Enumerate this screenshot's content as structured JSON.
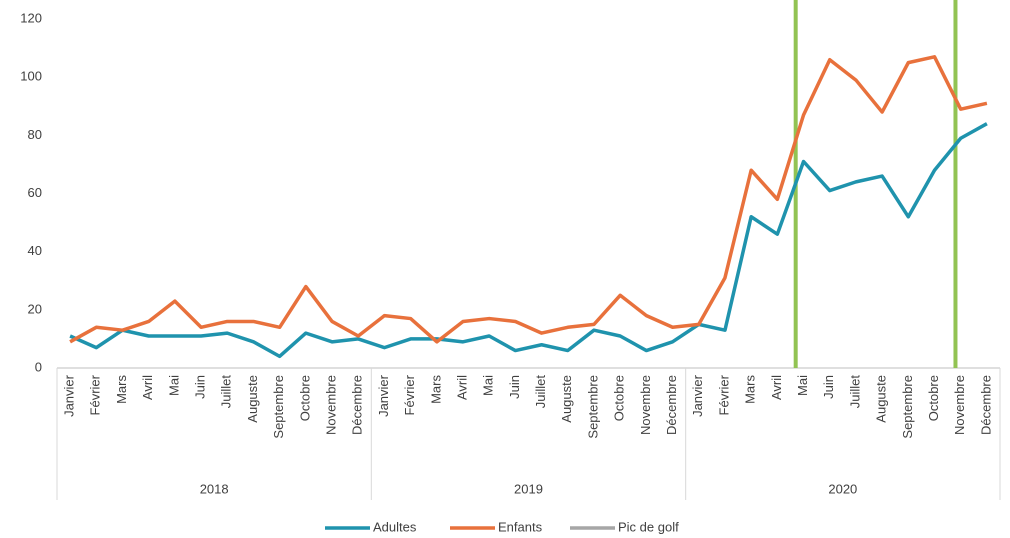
{
  "chart_data": {
    "type": "line",
    "categories": [
      "Janvier",
      "Février",
      "Mars",
      "Avril",
      "Mai",
      "Juin",
      "Juillet",
      "Auguste",
      "Septembre",
      "Octobre",
      "Novembre",
      "Décembre",
      "Janvier",
      "Février",
      "Mars",
      "Avril",
      "Mai",
      "Juin",
      "Juillet",
      "Auguste",
      "Septembre",
      "Octobre",
      "Novembre",
      "Décembre",
      "Janvier",
      "Février",
      "Mars",
      "Avril",
      "Mai",
      "Juin",
      "Juillet",
      "Auguste",
      "Septembre",
      "Octobre",
      "Novembre",
      "Décembre"
    ],
    "groups": [
      {
        "label": "2018",
        "count": 12
      },
      {
        "label": "2019",
        "count": 12
      },
      {
        "label": "2020",
        "count": 12
      }
    ],
    "series": [
      {
        "name": "Adultes",
        "color": "#1f93ad",
        "values": [
          11,
          7,
          13,
          11,
          11,
          11,
          12,
          9,
          4,
          12,
          9,
          10,
          7,
          10,
          10,
          9,
          11,
          6,
          8,
          6,
          13,
          11,
          6,
          9,
          15,
          13,
          52,
          46,
          71,
          61,
          64,
          66,
          52,
          68,
          79,
          84
        ]
      },
      {
        "name": "Enfants",
        "color": "#e8713c",
        "values": [
          9,
          14,
          13,
          16,
          23,
          14,
          16,
          16,
          14,
          28,
          16,
          11,
          18,
          17,
          9,
          16,
          17,
          16,
          12,
          14,
          15,
          25,
          18,
          14,
          15,
          31,
          68,
          58,
          87,
          106,
          99,
          88,
          105,
          107,
          89,
          91
        ]
      }
    ],
    "markers": {
      "name": "Pic de golf",
      "color": "#92c353",
      "legend_color": "#a6a6a6",
      "positions": [
        27.7,
        33.8
      ]
    },
    "ylim": [
      0,
      120
    ],
    "yticks": [
      0,
      20,
      40,
      60,
      80,
      100,
      120
    ],
    "grid": false
  }
}
